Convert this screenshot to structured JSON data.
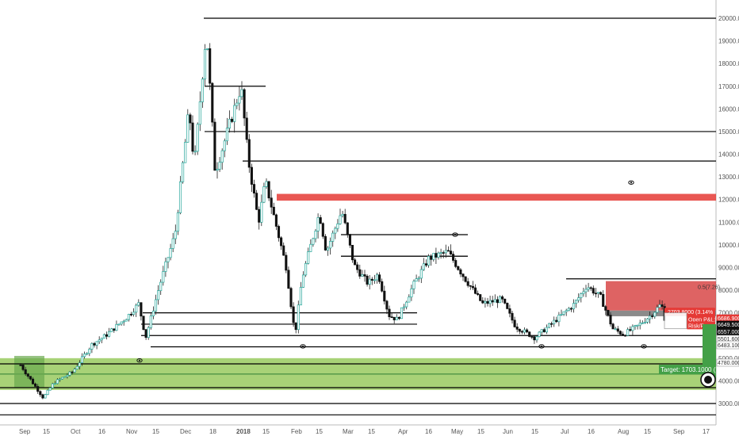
{
  "chart_data": {
    "type": "candlestick",
    "title": "",
    "xlabel": "",
    "ylabel": "",
    "ylim": [
      2400,
      20600
    ],
    "y_ticks": [
      "20000.0000",
      "19000.0000",
      "18000.0000",
      "17000.0000",
      "16000.0000",
      "15000.0000",
      "14000.0000",
      "13000.0000",
      "12000.0000",
      "11000.0000",
      "10000.0000",
      "9000.0000",
      "8000.0000",
      "7000.0000",
      "6000.0000",
      "5000.0000",
      "4000.0000",
      "3000.0000"
    ],
    "x_ticks": [
      "Sep",
      "15",
      "Oct",
      "16",
      "Nov",
      "15",
      "Dec",
      "18",
      "2018",
      "15",
      "Feb",
      "15",
      "Mar",
      "15",
      "Apr",
      "16",
      "May",
      "15",
      "Jun",
      "15",
      "Jul",
      "16",
      "Aug",
      "15",
      "Sep",
      "17"
    ],
    "price_path": [
      [
        "2017-09-01",
        4700
      ],
      [
        "2017-09-04",
        4350
      ],
      [
        "2017-09-14",
        3250
      ],
      [
        "2017-09-20",
        3900
      ],
      [
        "2017-10-01",
        4400
      ],
      [
        "2017-10-12",
        5600
      ],
      [
        "2017-10-20",
        6000
      ],
      [
        "2017-11-01",
        6800
      ],
      [
        "2017-11-08",
        7400
      ],
      [
        "2017-11-12",
        5900
      ],
      [
        "2017-11-20",
        8200
      ],
      [
        "2017-11-29",
        10500
      ],
      [
        "2017-12-07",
        16000
      ],
      [
        "2017-12-10",
        13500
      ],
      [
        "2017-12-17",
        19500
      ],
      [
        "2017-12-22",
        13200
      ],
      [
        "2018-01-06",
        17000
      ],
      [
        "2018-01-10",
        13800
      ],
      [
        "2018-01-16",
        11000
      ],
      [
        "2018-01-20",
        12800
      ],
      [
        "2018-02-01",
        9000
      ],
      [
        "2018-02-06",
        6000
      ],
      [
        "2018-02-10",
        8500
      ],
      [
        "2018-02-20",
        11400
      ],
      [
        "2018-02-24",
        9700
      ],
      [
        "2018-03-05",
        11500
      ],
      [
        "2018-03-12",
        9100
      ],
      [
        "2018-03-20",
        8300
      ],
      [
        "2018-03-26",
        8700
      ],
      [
        "2018-04-01",
        6900
      ],
      [
        "2018-04-06",
        6700
      ],
      [
        "2018-04-15",
        8200
      ],
      [
        "2018-04-24",
        9400
      ],
      [
        "2018-05-05",
        9700
      ],
      [
        "2018-05-15",
        8500
      ],
      [
        "2018-05-25",
        7400
      ],
      [
        "2018-06-05",
        7600
      ],
      [
        "2018-06-13",
        6400
      ],
      [
        "2018-06-24",
        5900
      ],
      [
        "2018-07-05",
        6600
      ],
      [
        "2018-07-17",
        7400
      ],
      [
        "2018-07-24",
        8200
      ],
      [
        "2018-08-01",
        7700
      ],
      [
        "2018-08-08",
        6300
      ],
      [
        "2018-08-14",
        6050
      ],
      [
        "2018-08-22",
        6400
      ],
      [
        "2018-08-30",
        6900
      ],
      [
        "2018-09-05",
        7400
      ],
      [
        "2018-09-08",
        6400
      ]
    ],
    "horizontal_levels": [
      20000,
      17000,
      15000,
      13700,
      9500,
      6500,
      6000,
      5500,
      4750,
      4300,
      3700,
      3000,
      2500
    ],
    "zones": [
      {
        "name": "red-resistance",
        "from": 11950,
        "to": 12250,
        "color": "#e53935"
      },
      {
        "name": "green-support",
        "from": 3600,
        "to": 5000,
        "color": "#8bc34a"
      }
    ],
    "short_position": {
      "entry_label": "2703.8000 (3.14%",
      "stop_label": "Open P&L: -1",
      "ratio_label": "Risk/Rewar",
      "fib_label": "0.5(7.26)"
    },
    "price_tags": [
      {
        "label": "6686.9000",
        "bg": "#e53935"
      },
      {
        "label": "6649.5000",
        "bg": "#111111"
      },
      {
        "label": "6557.0000",
        "bg": "#111111"
      },
      {
        "label": "5501.6000",
        "bg": "#ffffff"
      },
      {
        "label": "6483.1000",
        "bg": "#ffffff"
      },
      {
        "label": "4780.0000",
        "bg": "#ffffff"
      }
    ],
    "target_label": "Target: 1703.1000 (",
    "colors": {
      "up": "#26a69a",
      "down": "#111111",
      "wick": "#222222",
      "level": "#000000"
    }
  }
}
